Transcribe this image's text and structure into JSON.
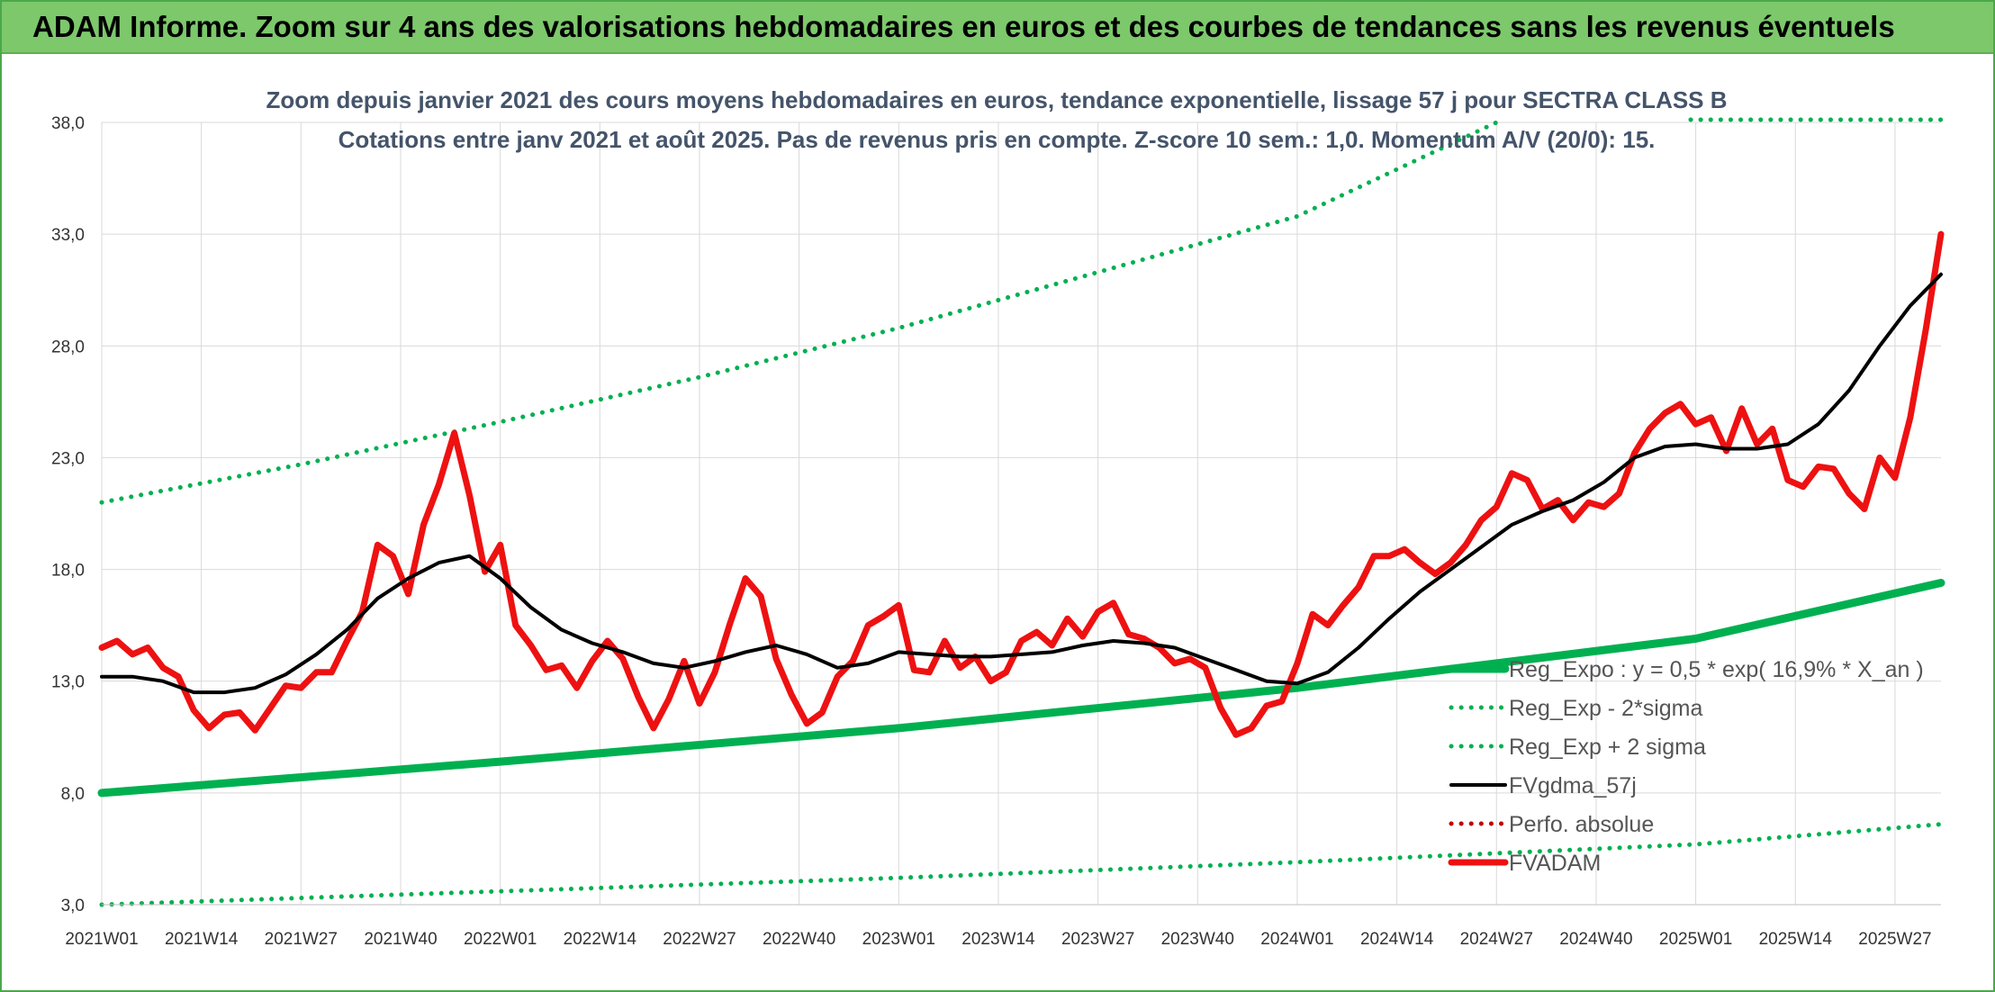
{
  "header": {
    "title": "ADAM Informe. Zoom sur 4 ans des valorisations hebdomadaires en euros et des courbes de tendances sans les revenus éventuels"
  },
  "chart_data": {
    "type": "line",
    "title": "Zoom depuis janvier 2021 des cours moyens hebdomadaires en euros, tendance exponentielle, lissage 57 j pour SECTRA CLASS B",
    "subtitle": "Cotations entre janv 2021 et août 2025. Pas de revenus pris en compte. Z-score 10 sem.: 1,0. Momentum A/V (20/0): 15.",
    "xlabel": "",
    "ylabel": "",
    "ylim": [
      3,
      38
    ],
    "y_ticks": [
      "3,0",
      "8,0",
      "13,0",
      "18,0",
      "23,0",
      "28,0",
      "33,0",
      "38,0"
    ],
    "x_ticks": [
      "2021W01",
      "2021W14",
      "2021W27",
      "2021W40",
      "2022W01",
      "2022W14",
      "2022W27",
      "2022W40",
      "2023W01",
      "2023W14",
      "2023W27",
      "2023W40",
      "2024W01",
      "2024W14",
      "2024W27",
      "2024W40",
      "2025W01",
      "2025W14",
      "2025W27"
    ],
    "grid": true,
    "legend_position": "bottom-right",
    "x_start_week_index": 0,
    "x_end_week_index": 240,
    "series": [
      {
        "name": "Reg_Expo : y = 0,5 * exp( 16,9% *  X_an )",
        "color": "#00b050",
        "style": "solid-thick",
        "x": [
          0,
          52,
          104,
          156,
          208,
          240
        ],
        "y": [
          8.0,
          9.4,
          10.9,
          12.7,
          14.9,
          17.4
        ]
      },
      {
        "name": "Reg_Exp - 2*sigma",
        "color": "#00b050",
        "style": "dotted",
        "x": [
          0,
          52,
          104,
          156,
          208,
          240
        ],
        "y": [
          3.0,
          3.6,
          4.2,
          4.9,
          5.7,
          6.6
        ]
      },
      {
        "name": "Reg_Exp + 2 sigma",
        "color": "#00b050",
        "style": "dotted",
        "x": [
          0,
          26,
          52,
          78,
          104,
          130,
          156,
          182
        ],
        "y": [
          21.0,
          22.7,
          24.6,
          26.6,
          28.8,
          31.3,
          33.8,
          38.0
        ]
      },
      {
        "name": "FVgdma_57j",
        "color": "#000000",
        "style": "solid",
        "x": [
          0,
          4,
          8,
          12,
          16,
          20,
          24,
          28,
          32,
          36,
          40,
          44,
          48,
          52,
          56,
          60,
          64,
          68,
          72,
          76,
          80,
          84,
          88,
          92,
          96,
          100,
          104,
          108,
          112,
          116,
          120,
          124,
          128,
          132,
          136,
          140,
          144,
          148,
          152,
          156,
          160,
          164,
          168,
          172,
          176,
          180,
          184,
          188,
          192,
          196,
          200,
          204,
          208,
          212,
          216,
          220,
          224,
          228,
          232,
          236,
          240
        ],
        "y": [
          13.2,
          13.2,
          13.0,
          12.5,
          12.5,
          12.7,
          13.3,
          14.2,
          15.3,
          16.7,
          17.6,
          18.3,
          18.6,
          17.6,
          16.3,
          15.3,
          14.7,
          14.3,
          13.8,
          13.6,
          13.9,
          14.3,
          14.6,
          14.2,
          13.6,
          13.8,
          14.3,
          14.2,
          14.1,
          14.1,
          14.2,
          14.3,
          14.6,
          14.8,
          14.7,
          14.5,
          14.0,
          13.5,
          13.0,
          12.9,
          13.4,
          14.5,
          15.8,
          17.0,
          18.0,
          19.0,
          20.0,
          20.6,
          21.1,
          21.9,
          23.0,
          23.5,
          23.6,
          23.4,
          23.4,
          23.6,
          24.5,
          26.0,
          28.0,
          29.8,
          31.2
        ]
      },
      {
        "name": "Perfo. absolue",
        "color": "#c00000",
        "style": "dotted",
        "x": [],
        "y": []
      },
      {
        "name": "FVADAM",
        "color": "#ee1111",
        "style": "solid-thick",
        "x": [
          0,
          2,
          4,
          6,
          8,
          10,
          12,
          14,
          16,
          18,
          20,
          22,
          24,
          26,
          28,
          30,
          32,
          34,
          36,
          38,
          40,
          42,
          44,
          46,
          48,
          50,
          52,
          54,
          56,
          58,
          60,
          62,
          64,
          66,
          68,
          70,
          72,
          74,
          76,
          78,
          80,
          82,
          84,
          86,
          88,
          90,
          92,
          94,
          96,
          98,
          100,
          102,
          104,
          106,
          108,
          110,
          112,
          114,
          116,
          118,
          120,
          122,
          124,
          126,
          128,
          130,
          132,
          134,
          136,
          138,
          140,
          142,
          144,
          146,
          148,
          150,
          152,
          154,
          156,
          158,
          160,
          162,
          164,
          166,
          168,
          170,
          172,
          174,
          176,
          178,
          180,
          182,
          184,
          186,
          188,
          190,
          192,
          194,
          196,
          198,
          200,
          202,
          204,
          206,
          208,
          210,
          212,
          214,
          216,
          218,
          220,
          222,
          224,
          226,
          228,
          230,
          232,
          234,
          236,
          238,
          240
        ],
        "y": [
          14.5,
          14.8,
          14.2,
          14.5,
          13.6,
          13.2,
          11.7,
          10.9,
          11.5,
          11.6,
          10.8,
          11.8,
          12.8,
          12.7,
          13.4,
          13.4,
          14.8,
          16.1,
          19.1,
          18.6,
          16.9,
          20.0,
          21.8,
          24.1,
          21.3,
          17.9,
          19.1,
          15.5,
          14.6,
          13.5,
          13.7,
          12.7,
          13.9,
          14.8,
          14.0,
          12.3,
          10.9,
          12.2,
          13.9,
          12.0,
          13.4,
          15.6,
          17.6,
          16.8,
          14.0,
          12.4,
          11.1,
          11.6,
          13.2,
          13.9,
          15.5,
          15.9,
          16.4,
          13.5,
          13.4,
          14.8,
          13.6,
          14.1,
          13.0,
          13.4,
          14.8,
          15.2,
          14.6,
          15.8,
          15.0,
          16.1,
          16.5,
          15.1,
          14.9,
          14.5,
          13.8,
          14.0,
          13.6,
          11.8,
          10.6,
          10.9,
          11.9,
          12.1,
          13.8,
          16.0,
          15.5,
          16.4,
          17.2,
          18.6,
          18.6,
          18.9,
          18.3,
          17.8,
          18.3,
          19.1,
          20.2,
          20.8,
          22.3,
          22.0,
          20.7,
          21.1,
          20.2,
          21.0,
          20.8,
          21.4,
          23.2,
          24.3,
          25.0,
          25.4,
          24.5,
          24.8,
          23.3,
          25.2,
          23.6,
          24.3,
          22.0,
          21.7,
          22.6,
          22.5,
          21.4,
          20.7,
          23.0,
          22.1,
          24.8,
          28.7,
          33.0
        ]
      }
    ]
  }
}
